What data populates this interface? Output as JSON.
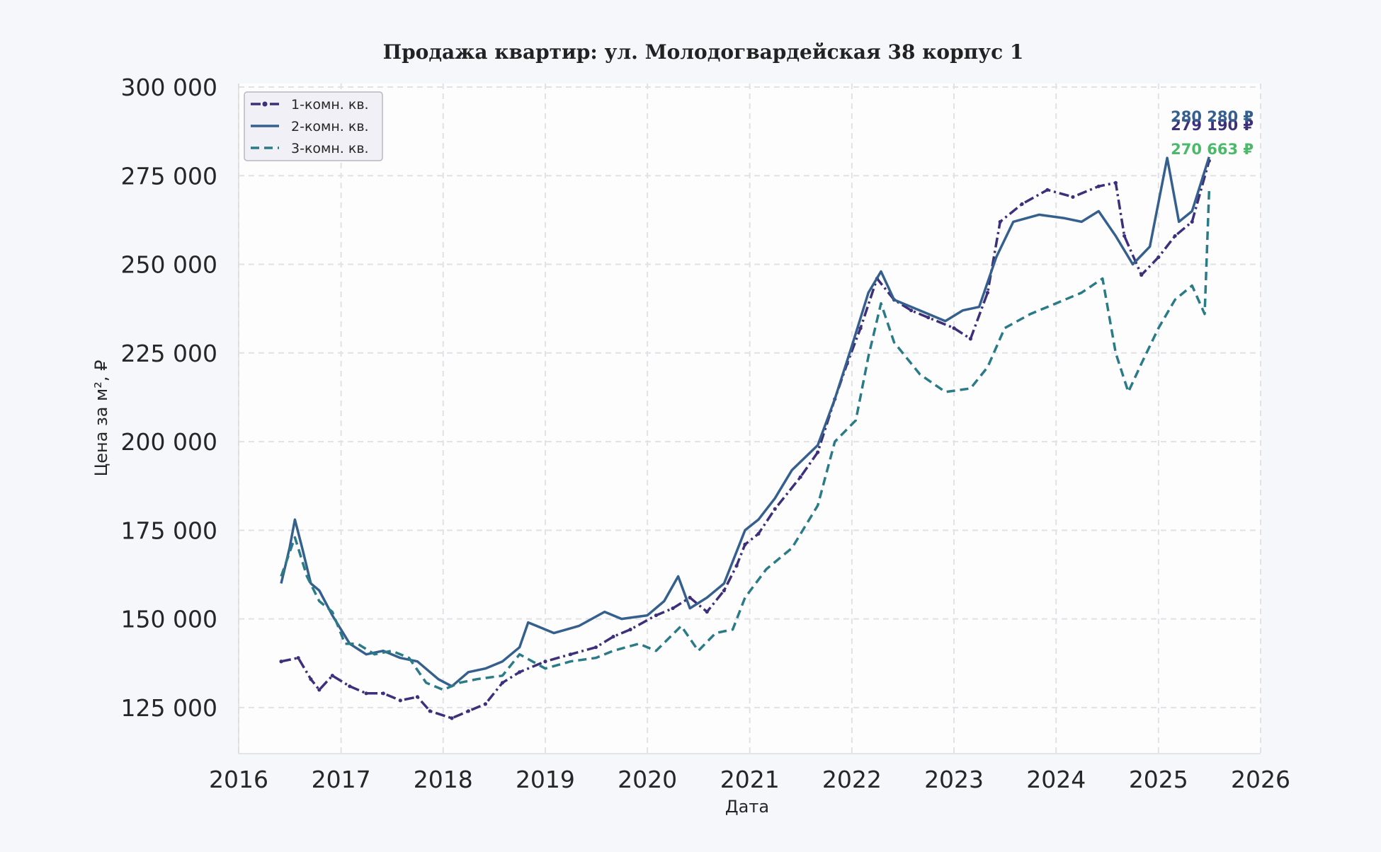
{
  "chart_data": {
    "type": "line",
    "title": "Продажа квартир: ул. Молодогвардейская 38 корпус 1",
    "xlabel": "Дата",
    "ylabel": "Цена за м², ₽",
    "xlim": [
      "2016-01-01",
      "2026-01-01"
    ],
    "ylim": [
      112000,
      301000
    ],
    "x_ticks": [
      "2016",
      "2017",
      "2018",
      "2019",
      "2020",
      "2021",
      "2022",
      "2023",
      "2024",
      "2025",
      "2026"
    ],
    "y_ticks": [
      125000,
      150000,
      175000,
      200000,
      225000,
      250000,
      275000,
      300000
    ],
    "y_tick_labels": [
      "125 000",
      "150 000",
      "175 000",
      "200 000",
      "225 000",
      "250 000",
      "275 000",
      "300 000"
    ],
    "grid": true,
    "legend_position": "top-left",
    "series": [
      {
        "name": "1-комн. кв.",
        "color": "#3e2f7a",
        "style": "dashdot-marker",
        "end_label": "279 190 ₽",
        "points": [
          [
            "2016-06-01",
            138000
          ],
          [
            "2016-08-01",
            139000
          ],
          [
            "2016-09-15",
            133000
          ],
          [
            "2016-10-15",
            130000
          ],
          [
            "2016-12-01",
            134000
          ],
          [
            "2017-02-01",
            131000
          ],
          [
            "2017-04-01",
            129000
          ],
          [
            "2017-06-01",
            129000
          ],
          [
            "2017-08-01",
            127000
          ],
          [
            "2017-10-01",
            128000
          ],
          [
            "2017-11-15",
            124000
          ],
          [
            "2018-02-01",
            122000
          ],
          [
            "2018-04-01",
            124000
          ],
          [
            "2018-06-01",
            126000
          ],
          [
            "2018-08-01",
            132000
          ],
          [
            "2018-10-01",
            135000
          ],
          [
            "2019-01-01",
            138000
          ],
          [
            "2019-04-01",
            140000
          ],
          [
            "2019-07-01",
            142000
          ],
          [
            "2019-09-01",
            145000
          ],
          [
            "2019-11-01",
            147000
          ],
          [
            "2020-02-01",
            151000
          ],
          [
            "2020-04-01",
            153000
          ],
          [
            "2020-06-01",
            156000
          ],
          [
            "2020-08-01",
            152000
          ],
          [
            "2020-10-01",
            158000
          ],
          [
            "2020-11-15",
            165000
          ],
          [
            "2020-12-15",
            171000
          ],
          [
            "2021-02-01",
            174000
          ],
          [
            "2021-04-01",
            181000
          ],
          [
            "2021-07-01",
            190000
          ],
          [
            "2021-09-01",
            197000
          ],
          [
            "2021-11-01",
            212000
          ],
          [
            "2021-12-15",
            222000
          ],
          [
            "2022-02-01",
            232000
          ],
          [
            "2022-04-01",
            246000
          ],
          [
            "2022-06-01",
            240000
          ],
          [
            "2022-08-01",
            237000
          ],
          [
            "2022-10-01",
            235000
          ],
          [
            "2023-01-01",
            232000
          ],
          [
            "2023-03-01",
            229000
          ],
          [
            "2023-05-01",
            242000
          ],
          [
            "2023-06-15",
            262000
          ],
          [
            "2023-09-01",
            267000
          ],
          [
            "2023-12-01",
            271000
          ],
          [
            "2024-03-01",
            269000
          ],
          [
            "2024-06-01",
            272000
          ],
          [
            "2024-08-01",
            273000
          ],
          [
            "2024-09-01",
            258000
          ],
          [
            "2024-11-01",
            247000
          ],
          [
            "2025-01-01",
            252000
          ],
          [
            "2025-03-01",
            258000
          ],
          [
            "2025-05-01",
            262000
          ],
          [
            "2025-07-01",
            279190
          ]
        ]
      },
      {
        "name": "2-комн. кв.",
        "color": "#35608d",
        "style": "solid",
        "end_label": "280 280 ₽",
        "points": [
          [
            "2016-06-01",
            160000
          ],
          [
            "2016-07-01",
            170000
          ],
          [
            "2016-07-20",
            178000
          ],
          [
            "2016-08-15",
            170000
          ],
          [
            "2016-09-15",
            160000
          ],
          [
            "2016-10-15",
            158000
          ],
          [
            "2016-12-01",
            151000
          ],
          [
            "2017-02-01",
            143000
          ],
          [
            "2017-04-01",
            140000
          ],
          [
            "2017-06-01",
            141000
          ],
          [
            "2017-08-01",
            139000
          ],
          [
            "2017-10-01",
            138000
          ],
          [
            "2017-12-15",
            133000
          ],
          [
            "2018-02-01",
            131000
          ],
          [
            "2018-04-01",
            135000
          ],
          [
            "2018-06-01",
            136000
          ],
          [
            "2018-08-01",
            138000
          ],
          [
            "2018-10-01",
            142000
          ],
          [
            "2018-11-01",
            149000
          ],
          [
            "2019-02-01",
            146000
          ],
          [
            "2019-05-01",
            148000
          ],
          [
            "2019-08-01",
            152000
          ],
          [
            "2019-10-01",
            150000
          ],
          [
            "2020-01-01",
            151000
          ],
          [
            "2020-03-01",
            155000
          ],
          [
            "2020-04-20",
            162000
          ],
          [
            "2020-06-01",
            153000
          ],
          [
            "2020-08-01",
            156000
          ],
          [
            "2020-10-01",
            160000
          ],
          [
            "2020-12-15",
            175000
          ],
          [
            "2021-02-01",
            178000
          ],
          [
            "2021-04-01",
            184000
          ],
          [
            "2021-06-01",
            192000
          ],
          [
            "2021-09-01",
            199000
          ],
          [
            "2021-11-01",
            212000
          ],
          [
            "2022-01-01",
            227000
          ],
          [
            "2022-03-01",
            242000
          ],
          [
            "2022-04-15",
            248000
          ],
          [
            "2022-06-01",
            240000
          ],
          [
            "2022-09-01",
            237000
          ],
          [
            "2022-12-01",
            234000
          ],
          [
            "2023-02-01",
            237000
          ],
          [
            "2023-04-01",
            238000
          ],
          [
            "2023-06-01",
            252000
          ],
          [
            "2023-08-01",
            262000
          ],
          [
            "2023-11-01",
            264000
          ],
          [
            "2024-02-01",
            263000
          ],
          [
            "2024-04-01",
            262000
          ],
          [
            "2024-06-01",
            265000
          ],
          [
            "2024-08-01",
            258000
          ],
          [
            "2024-10-01",
            250000
          ],
          [
            "2024-12-01",
            255000
          ],
          [
            "2025-02-01",
            280000
          ],
          [
            "2025-03-15",
            262000
          ],
          [
            "2025-05-01",
            265000
          ],
          [
            "2025-07-01",
            280280
          ]
        ]
      },
      {
        "name": "3-комн. кв.",
        "color": "#2a7b87",
        "style": "dashed",
        "end_label": "270 663 ₽",
        "end_label_color": "#4cb96a",
        "points": [
          [
            "2016-06-01",
            162000
          ],
          [
            "2016-07-20",
            173000
          ],
          [
            "2016-09-01",
            162000
          ],
          [
            "2016-10-15",
            155000
          ],
          [
            "2016-12-01",
            152000
          ],
          [
            "2017-01-15",
            143000
          ],
          [
            "2017-03-01",
            143000
          ],
          [
            "2017-05-01",
            140000
          ],
          [
            "2017-07-01",
            141000
          ],
          [
            "2017-09-01",
            139000
          ],
          [
            "2017-11-01",
            132000
          ],
          [
            "2018-01-01",
            130000
          ],
          [
            "2018-03-01",
            132000
          ],
          [
            "2018-05-01",
            133000
          ],
          [
            "2018-08-01",
            134000
          ],
          [
            "2018-10-01",
            140000
          ],
          [
            "2019-01-01",
            136000
          ],
          [
            "2019-04-01",
            138000
          ],
          [
            "2019-07-01",
            139000
          ],
          [
            "2019-09-01",
            141000
          ],
          [
            "2019-12-01",
            143000
          ],
          [
            "2020-02-01",
            141000
          ],
          [
            "2020-05-01",
            148000
          ],
          [
            "2020-07-01",
            141000
          ],
          [
            "2020-09-01",
            146000
          ],
          [
            "2020-11-01",
            147000
          ],
          [
            "2020-12-15",
            156000
          ],
          [
            "2021-03-01",
            164000
          ],
          [
            "2021-06-01",
            170000
          ],
          [
            "2021-09-01",
            182000
          ],
          [
            "2021-11-01",
            200000
          ],
          [
            "2022-01-15",
            206000
          ],
          [
            "2022-03-01",
            224000
          ],
          [
            "2022-04-15",
            239000
          ],
          [
            "2022-06-01",
            228000
          ],
          [
            "2022-09-01",
            219000
          ],
          [
            "2022-12-01",
            214000
          ],
          [
            "2023-03-01",
            215000
          ],
          [
            "2023-05-01",
            221000
          ],
          [
            "2023-07-01",
            232000
          ],
          [
            "2023-10-01",
            236000
          ],
          [
            "2024-01-01",
            239000
          ],
          [
            "2024-04-01",
            242000
          ],
          [
            "2024-06-15",
            246000
          ],
          [
            "2024-08-01",
            225000
          ],
          [
            "2024-09-15",
            214000
          ],
          [
            "2024-11-01",
            222000
          ],
          [
            "2025-01-01",
            232000
          ],
          [
            "2025-03-01",
            240000
          ],
          [
            "2025-05-01",
            244000
          ],
          [
            "2025-06-15",
            236000
          ],
          [
            "2025-07-01",
            270663
          ]
        ]
      }
    ]
  }
}
